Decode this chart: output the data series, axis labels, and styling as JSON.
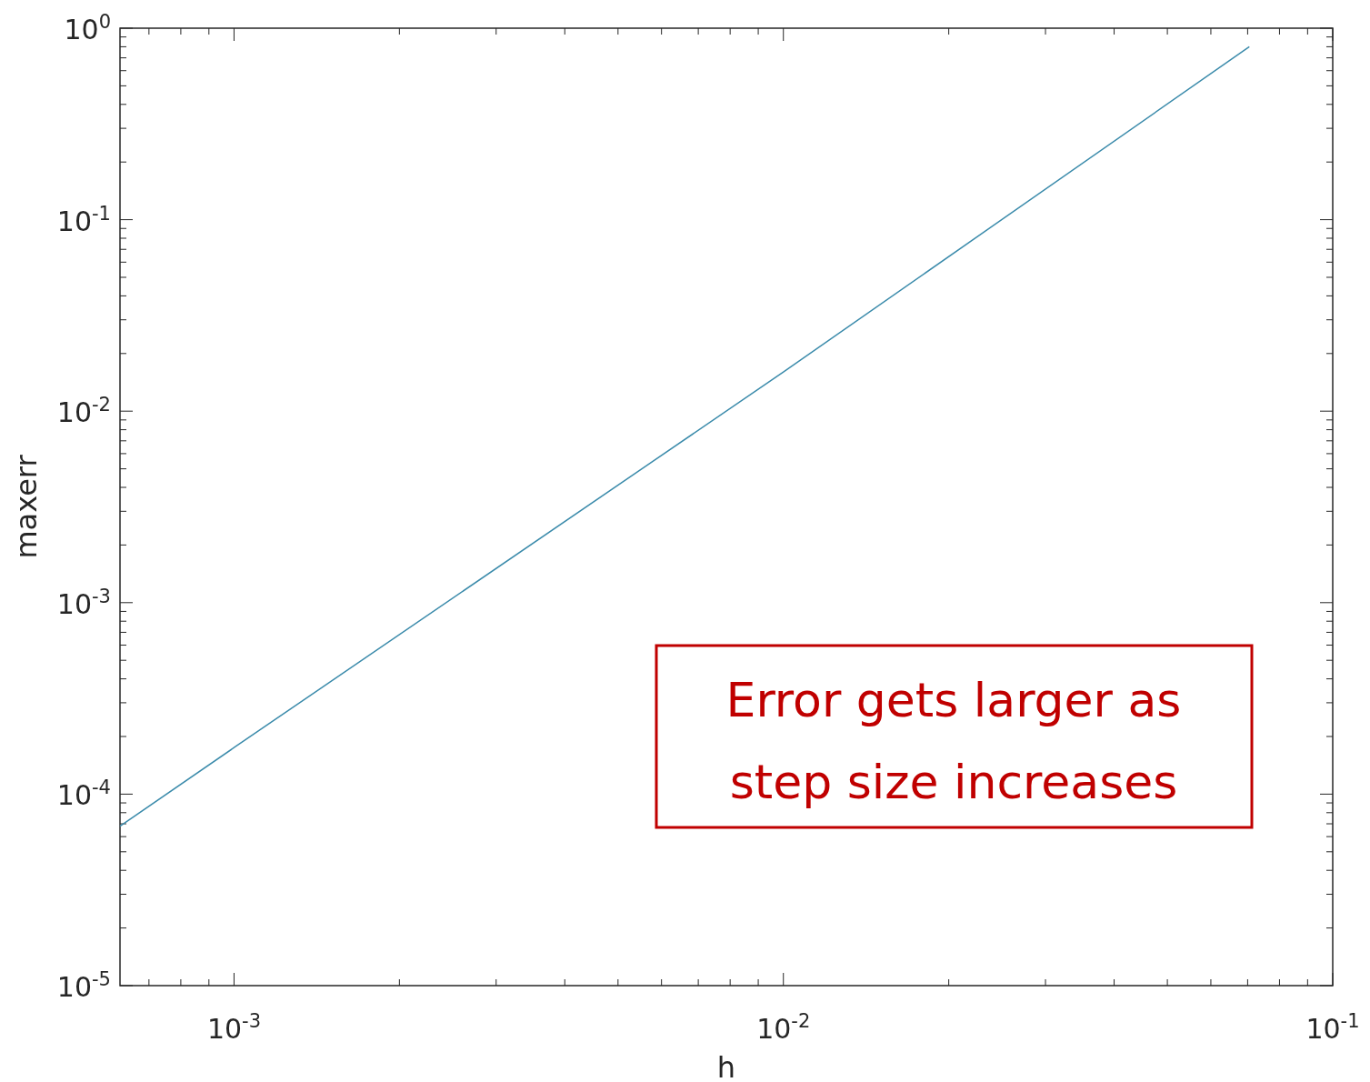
{
  "chart_data": {
    "type": "line",
    "xlabel": "h",
    "ylabel": "maxerr",
    "log": "xy",
    "grid": false,
    "marker": "none",
    "line_style": "solid",
    "xlim": [
      0.00062,
      0.1
    ],
    "ylim": [
      1e-05,
      1
    ],
    "xticks": [
      {
        "value": 0.0007,
        "label": null
      },
      {
        "value": 0.0008,
        "label": null
      },
      {
        "value": 0.0009,
        "label": null
      },
      {
        "value": 0.001,
        "label": "10$^{-3}$"
      },
      {
        "value": 0.002,
        "label": null
      },
      {
        "value": 0.003,
        "label": null
      },
      {
        "value": 0.004,
        "label": null
      },
      {
        "value": 0.005,
        "label": null
      },
      {
        "value": 0.006,
        "label": null
      },
      {
        "value": 0.007,
        "label": null
      },
      {
        "value": 0.008,
        "label": null
      },
      {
        "value": 0.009,
        "label": null
      },
      {
        "value": 0.01,
        "label": "10$^{-2}$"
      },
      {
        "value": 0.02,
        "label": null
      },
      {
        "value": 0.03,
        "label": null
      },
      {
        "value": 0.04,
        "label": null
      },
      {
        "value": 0.05,
        "label": null
      },
      {
        "value": 0.06,
        "label": null
      },
      {
        "value": 0.07,
        "label": null
      },
      {
        "value": 0.08,
        "label": null
      },
      {
        "value": 0.09,
        "label": null
      },
      {
        "value": 0.1,
        "label": "10$^{-1}$"
      }
    ],
    "yticks": [
      {
        "value": 1e-05,
        "label": "10$^{-5}$"
      },
      {
        "value": 2e-05,
        "label": null
      },
      {
        "value": 3e-05,
        "label": null
      },
      {
        "value": 4e-05,
        "label": null
      },
      {
        "value": 5e-05,
        "label": null
      },
      {
        "value": 6e-05,
        "label": null
      },
      {
        "value": 7e-05,
        "label": null
      },
      {
        "value": 8e-05,
        "label": null
      },
      {
        "value": 9e-05,
        "label": null
      },
      {
        "value": 0.0001,
        "label": "10$^{-4}$"
      },
      {
        "value": 0.0002,
        "label": null
      },
      {
        "value": 0.0003,
        "label": null
      },
      {
        "value": 0.0004,
        "label": null
      },
      {
        "value": 0.0005,
        "label": null
      },
      {
        "value": 0.0006,
        "label": null
      },
      {
        "value": 0.0007,
        "label": null
      },
      {
        "value": 0.0008,
        "label": null
      },
      {
        "value": 0.0009,
        "label": null
      },
      {
        "value": 0.001,
        "label": "10$^{-3}$"
      },
      {
        "value": 0.002,
        "label": null
      },
      {
        "value": 0.003,
        "label": null
      },
      {
        "value": 0.004,
        "label": null
      },
      {
        "value": 0.005,
        "label": null
      },
      {
        "value": 0.006,
        "label": null
      },
      {
        "value": 0.007,
        "label": null
      },
      {
        "value": 0.008,
        "label": null
      },
      {
        "value": 0.009,
        "label": null
      },
      {
        "value": 0.01,
        "label": "10$^{-2}$"
      },
      {
        "value": 0.02,
        "label": null
      },
      {
        "value": 0.03,
        "label": null
      },
      {
        "value": 0.04,
        "label": null
      },
      {
        "value": 0.05,
        "label": null
      },
      {
        "value": 0.06,
        "label": null
      },
      {
        "value": 0.07,
        "label": null
      },
      {
        "value": 0.08,
        "label": null
      },
      {
        "value": 0.09,
        "label": null
      },
      {
        "value": 0.1,
        "label": "10$^{-1}$"
      },
      {
        "value": 0.2,
        "label": null
      },
      {
        "value": 0.3,
        "label": null
      },
      {
        "value": 0.4,
        "label": null
      },
      {
        "value": 0.5,
        "label": null
      },
      {
        "value": 0.6,
        "label": null
      },
      {
        "value": 0.7,
        "label": null
      },
      {
        "value": 0.8,
        "label": null
      },
      {
        "value": 0.9,
        "label": null
      },
      {
        "value": 1,
        "label": "10$^{0}$"
      }
    ],
    "x": [
      0.00062,
      0.001,
      0.01,
      0.0705
    ],
    "series": [
      {
        "color": "#3b8bab",
        "values": [
          6.8e-05,
          0.000175,
          0.016,
          0.8
        ]
      }
    ],
    "annotations": [
      "Error gets larger as step size increases"
    ]
  }
}
